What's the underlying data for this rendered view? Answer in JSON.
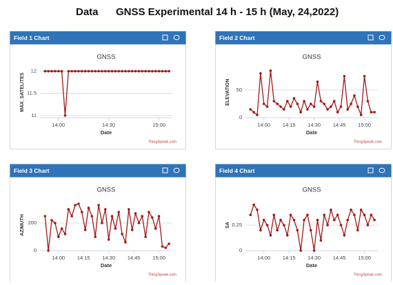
{
  "header": {
    "label": "Data",
    "title": "GNSS Experimental 14 h - 15 h (May, 24,2022)"
  },
  "chart_data": [
    {
      "type": "line",
      "panel_title": "Field 1 Chart",
      "title": "GNSS",
      "x_label": "Date",
      "y_label": "MAX_SATELITES",
      "credit": "ThingSpeak.com",
      "color": "#a01818",
      "grid": true,
      "x": [
        832,
        834,
        836,
        838,
        840,
        842,
        844,
        846,
        848,
        850,
        852,
        854,
        856,
        858,
        860,
        862,
        864,
        866,
        868,
        870,
        872,
        874,
        876,
        878,
        880,
        882,
        884,
        886,
        888,
        890,
        892,
        894,
        896,
        898,
        900,
        902,
        904,
        906
      ],
      "values": [
        12,
        12,
        12,
        12,
        12,
        12,
        11,
        12,
        12,
        12,
        12,
        12,
        12,
        12,
        12,
        12,
        12,
        12,
        12,
        12,
        12,
        12,
        12,
        12,
        12,
        12,
        12,
        12,
        12,
        12,
        12,
        12,
        12,
        12,
        12,
        12,
        12,
        12
      ],
      "xlim": [
        829,
        908
      ],
      "xticks": [
        {
          "value": 840,
          "label": "14:00"
        },
        {
          "value": 870,
          "label": "14:30"
        },
        {
          "value": 900,
          "label": "15:00"
        }
      ],
      "ylim": [
        10.95,
        12.1
      ],
      "yticks": [
        11,
        11.5,
        12
      ]
    },
    {
      "type": "line",
      "panel_title": "Field 2 Chart",
      "title": "GNSS",
      "x_label": "Date",
      "y_label": "ELEVATION",
      "credit": "ThingSpeak.com",
      "color": "#a01818",
      "grid": true,
      "x": [
        832,
        834,
        836,
        838,
        840,
        842,
        844,
        846,
        848,
        850,
        852,
        854,
        856,
        858,
        860,
        862,
        864,
        866,
        868,
        870,
        872,
        874,
        876,
        878,
        880,
        882,
        884,
        886,
        888,
        890,
        892,
        894,
        896,
        898,
        900,
        902,
        904,
        906
      ],
      "values": [
        15,
        10,
        5,
        80,
        25,
        20,
        85,
        30,
        25,
        20,
        15,
        30,
        20,
        35,
        25,
        10,
        30,
        15,
        25,
        20,
        65,
        30,
        25,
        15,
        20,
        30,
        10,
        20,
        75,
        15,
        25,
        40,
        20,
        5,
        75,
        30,
        10,
        10
      ],
      "xlim": [
        829,
        908
      ],
      "xticks": [
        {
          "value": 840,
          "label": "14:00"
        },
        {
          "value": 855,
          "label": "14:15"
        },
        {
          "value": 870,
          "label": "14:30"
        },
        {
          "value": 885,
          "label": "14:45"
        },
        {
          "value": 900,
          "label": "15:00"
        }
      ],
      "ylim": [
        0,
        92
      ],
      "yticks": [
        0,
        50
      ]
    },
    {
      "type": "line",
      "panel_title": "Field 3 Chart",
      "title": "GNSS",
      "x_label": "Date",
      "y_label": "AZIMUTH",
      "credit": "ThingSpeak.com",
      "color": "#a01818",
      "grid": true,
      "x": [
        832,
        834,
        836,
        838,
        840,
        842,
        844,
        846,
        848,
        850,
        852,
        854,
        856,
        858,
        860,
        862,
        864,
        866,
        868,
        870,
        872,
        874,
        876,
        878,
        880,
        882,
        884,
        886,
        888,
        890,
        892,
        894,
        896,
        898,
        900,
        902,
        904,
        906
      ],
      "values": [
        250,
        0,
        220,
        200,
        100,
        160,
        120,
        300,
        250,
        330,
        340,
        280,
        150,
        310,
        250,
        100,
        330,
        200,
        300,
        80,
        250,
        160,
        280,
        120,
        60,
        300,
        150,
        270,
        200,
        250,
        100,
        280,
        240,
        160,
        250,
        30,
        20,
        50
      ],
      "xlim": [
        829,
        908
      ],
      "xticks": [
        {
          "value": 840,
          "label": "14:00"
        },
        {
          "value": 855,
          "label": "14:15"
        },
        {
          "value": 870,
          "label": "14:30"
        },
        {
          "value": 885,
          "label": "14:45"
        },
        {
          "value": 900,
          "label": "15:00"
        }
      ],
      "ylim": [
        0,
        370
      ],
      "yticks": [
        0,
        200
      ]
    },
    {
      "type": "line",
      "panel_title": "Field 4 Chart",
      "title": "GNSS",
      "x_label": "Date",
      "y_label": "SA",
      "credit": "ThingSpeak.com",
      "color": "#a01818",
      "grid": true,
      "x": [
        832,
        834,
        836,
        838,
        840,
        842,
        844,
        846,
        848,
        850,
        852,
        854,
        856,
        858,
        860,
        862,
        864,
        866,
        868,
        870,
        872,
        874,
        876,
        878,
        880,
        882,
        884,
        886,
        888,
        890,
        892,
        894,
        896,
        898,
        900,
        902,
        904,
        906
      ],
      "values": [
        0.35,
        0.45,
        0.4,
        0.2,
        0.3,
        0.25,
        0.15,
        0.35,
        0.2,
        0.3,
        0.25,
        0.15,
        0.35,
        0.3,
        0.2,
        0,
        0.3,
        0.35,
        0.2,
        0,
        0.3,
        0.1,
        0.35,
        0.25,
        0.4,
        0.3,
        0.35,
        0.25,
        0.15,
        0.3,
        0.4,
        0.35,
        0.2,
        0.4,
        0.35,
        0.25,
        0.35,
        0.3
      ],
      "xlim": [
        829,
        908
      ],
      "xticks": [
        {
          "value": 840,
          "label": "14:00"
        },
        {
          "value": 855,
          "label": "14:15"
        },
        {
          "value": 870,
          "label": "14:30"
        },
        {
          "value": 885,
          "label": "14:45"
        },
        {
          "value": 900,
          "label": "15:00"
        }
      ],
      "ylim": [
        0,
        0.5
      ],
      "yticks": [
        0,
        0.25
      ]
    }
  ]
}
